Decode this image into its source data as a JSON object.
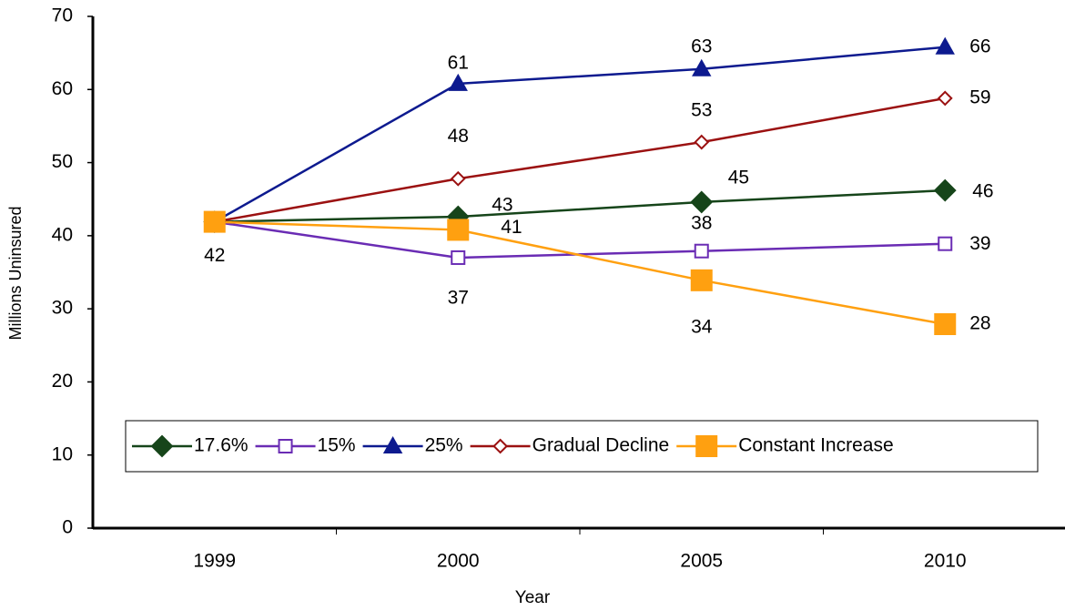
{
  "chart_data": {
    "type": "line",
    "x_label": "Year",
    "y_label": "Millions Uninsured",
    "categories": [
      "1999",
      "2000",
      "2005",
      "2010"
    ],
    "ylim": [
      0,
      70
    ],
    "yticks": [
      0,
      10,
      20,
      30,
      40,
      50,
      60,
      70
    ],
    "series": [
      {
        "name": "17.6%",
        "color": "#16451a",
        "marker": "diamond",
        "filled": true,
        "values": [
          41.9,
          42.6,
          44.6,
          46.2
        ],
        "value_labels": [
          "42",
          "43",
          "45",
          "46"
        ]
      },
      {
        "name": "15%",
        "color": "#6a2cb4",
        "marker": "square",
        "filled": false,
        "values": [
          41.9,
          37.0,
          37.9,
          38.9
        ],
        "value_labels": [
          null,
          "37",
          "38",
          "39"
        ]
      },
      {
        "name": "25%",
        "color": "#0d1a8f",
        "marker": "triangle",
        "filled": true,
        "values": [
          41.9,
          60.8,
          62.8,
          65.8
        ],
        "value_labels": [
          null,
          "61",
          "63",
          "66"
        ]
      },
      {
        "name": "Gradual Decline",
        "color": "#9b1111",
        "marker": "diamond",
        "filled": false,
        "values": [
          41.9,
          47.8,
          52.8,
          58.8
        ],
        "value_labels": [
          null,
          "48",
          "53",
          "59"
        ]
      },
      {
        "name": "Constant Increase",
        "color": "#ffa010",
        "marker": "bigsquare",
        "filled": true,
        "values": [
          41.9,
          40.8,
          33.9,
          27.9
        ],
        "value_labels": [
          null,
          "41",
          "34",
          "28"
        ]
      }
    ]
  }
}
